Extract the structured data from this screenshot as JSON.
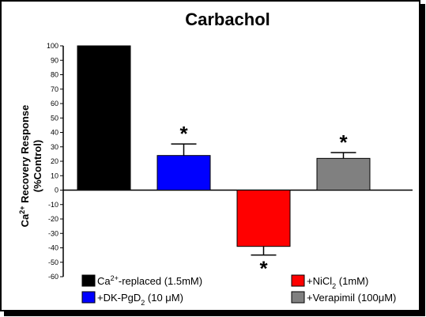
{
  "chart_data": {
    "type": "bar",
    "title": "Carbachol",
    "ylabel_line1_prefix": "Ca",
    "ylabel_line1_sup": "2+",
    "ylabel_line1_suffix": " Recovery Response",
    "ylabel_line2": "(%Control)",
    "ylim": [
      -60,
      100
    ],
    "yticks": [
      100,
      90,
      80,
      70,
      60,
      50,
      40,
      30,
      20,
      10,
      0,
      -10,
      -20,
      -30,
      -40,
      -50,
      -60
    ],
    "grid": false,
    "series": [
      {
        "legend": {
          "prefix": "Ca",
          "sup": "2+",
          "suffix": "-replaced (1.5mM)",
          "sub": "",
          "tail": ""
        },
        "value": 100,
        "error": 0,
        "color": "#000000",
        "star": ""
      },
      {
        "legend": {
          "prefix": "+DK-PgD",
          "sup": "",
          "suffix": "",
          "sub": "2",
          "tail": " (10 μM)"
        },
        "value": 24,
        "error": 8,
        "color": "#0000ff",
        "star": "*"
      },
      {
        "legend": {
          "prefix": "+NiCl",
          "sup": "",
          "suffix": "",
          "sub": "2",
          "tail": " (1mM)"
        },
        "value": -39,
        "error": 6,
        "color": "#ff0000",
        "star": "*"
      },
      {
        "legend": {
          "prefix": "+Verapimil (100",
          "sup": "",
          "suffix": "",
          "sub": "",
          "tail": "μM)"
        },
        "value": 22,
        "error": 4,
        "color": "#808080",
        "star": "*"
      }
    ]
  }
}
